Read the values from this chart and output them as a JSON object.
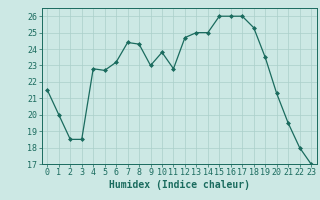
{
  "x": [
    0,
    1,
    2,
    3,
    4,
    5,
    6,
    7,
    8,
    9,
    10,
    11,
    12,
    13,
    14,
    15,
    16,
    17,
    18,
    19,
    20,
    21,
    22,
    23
  ],
  "y": [
    21.5,
    20.0,
    18.5,
    18.5,
    22.8,
    22.7,
    23.2,
    24.4,
    24.3,
    23.0,
    23.8,
    22.8,
    24.7,
    25.0,
    25.0,
    26.0,
    26.0,
    26.0,
    25.3,
    23.5,
    21.3,
    19.5,
    18.0,
    17.0
  ],
  "line_color": "#1a6b5e",
  "marker": "D",
  "marker_size": 2.0,
  "bg_color": "#cce8e4",
  "grid_color": "#aacfca",
  "xlabel": "Humidex (Indice chaleur)",
  "ylim": [
    17,
    26.5
  ],
  "xlim": [
    -0.5,
    23.5
  ],
  "yticks": [
    17,
    18,
    19,
    20,
    21,
    22,
    23,
    24,
    25,
    26
  ],
  "xticks": [
    0,
    1,
    2,
    3,
    4,
    5,
    6,
    7,
    8,
    9,
    10,
    11,
    12,
    13,
    14,
    15,
    16,
    17,
    18,
    19,
    20,
    21,
    22,
    23
  ],
  "tick_color": "#1a6b5e",
  "label_color": "#1a6b5e",
  "label_fontsize": 7,
  "tick_fontsize": 6
}
